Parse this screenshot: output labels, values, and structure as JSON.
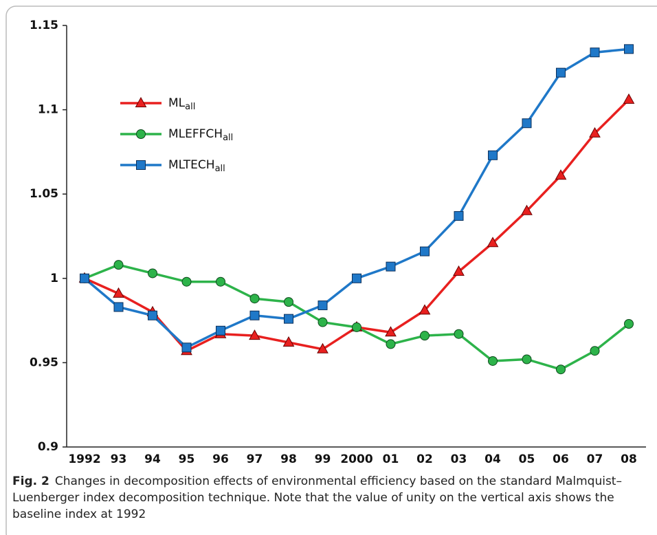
{
  "chart_data": {
    "type": "line",
    "categories": [
      "1992",
      "93",
      "94",
      "95",
      "96",
      "97",
      "98",
      "99",
      "2000",
      "01",
      "02",
      "03",
      "04",
      "05",
      "06",
      "07",
      "08"
    ],
    "series": [
      {
        "name": "ML",
        "subscript": "all",
        "color": "#e8201f",
        "marker": "triangle",
        "values": [
          1.0,
          0.991,
          0.98,
          0.957,
          0.967,
          0.966,
          0.962,
          0.958,
          0.971,
          0.968,
          0.981,
          1.004,
          1.021,
          1.04,
          1.061,
          1.086,
          1.106
        ]
      },
      {
        "name": "MLEFFCH",
        "subscript": "all",
        "color": "#2db34a",
        "marker": "circle",
        "values": [
          1.0,
          1.008,
          1.003,
          0.998,
          0.998,
          0.988,
          0.986,
          0.974,
          0.971,
          0.961,
          0.966,
          0.967,
          0.951,
          0.952,
          0.946,
          0.957,
          0.973
        ]
      },
      {
        "name": "MLTECH",
        "subscript": "all",
        "color": "#1f78c8",
        "marker": "square",
        "values": [
          1.0,
          0.983,
          0.978,
          0.959,
          0.969,
          0.978,
          0.976,
          0.984,
          1.0,
          1.007,
          1.016,
          1.037,
          1.073,
          1.092,
          1.122,
          1.134,
          1.136
        ]
      }
    ],
    "ylim": [
      0.9,
      1.15
    ],
    "yticks": [
      0.9,
      0.95,
      1,
      1.05,
      1.1,
      1.15
    ],
    "grid": false,
    "caption": {
      "label": "Fig. 2",
      "text": "Changes in decomposition effects of environmental efficiency based on the standard Malmquist–Luenberger index decomposition technique. Note that the value of unity on the vertical axis shows the baseline index at 1992"
    }
  }
}
